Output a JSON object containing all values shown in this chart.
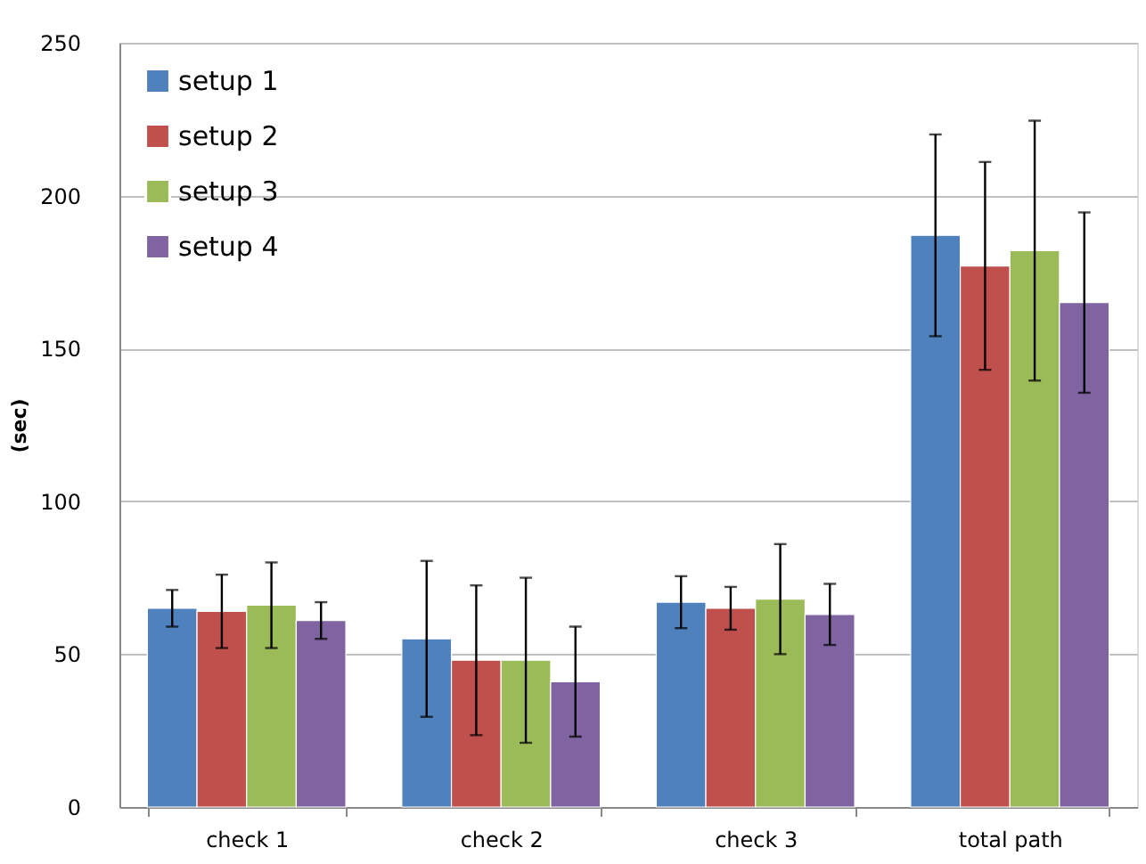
{
  "chart_data": {
    "type": "bar",
    "ylabel": "(sec)",
    "categories": [
      "check 1",
      "check 2",
      "check 3",
      "total path"
    ],
    "series": [
      {
        "name": "setup 1",
        "color": "#4f81bd",
        "values": [
          65,
          55,
          67,
          187
        ],
        "errors": [
          6,
          25.5,
          8.5,
          33
        ]
      },
      {
        "name": "setup 2",
        "color": "#c0504d",
        "values": [
          64,
          48,
          65,
          177
        ],
        "errors": [
          12,
          24.5,
          7,
          34
        ]
      },
      {
        "name": "setup 3",
        "color": "#9bbb59",
        "values": [
          66,
          48,
          68,
          182
        ],
        "errors": [
          14,
          27,
          18,
          42.5
        ]
      },
      {
        "name": "setup 4",
        "color": "#8064a2",
        "values": [
          61,
          41,
          63,
          165
        ],
        "errors": [
          6,
          18,
          10,
          29.5
        ]
      }
    ],
    "ylim": [
      0,
      250
    ],
    "yticks": [
      0,
      50,
      100,
      150,
      200,
      250
    ],
    "grid": "y",
    "legend": "top left"
  }
}
